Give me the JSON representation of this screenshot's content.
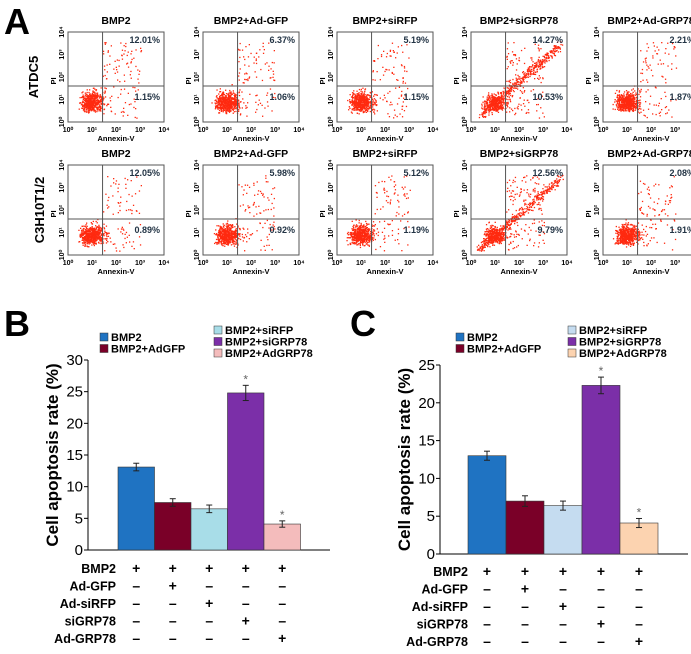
{
  "panel_a": {
    "label": "A",
    "row_labels": [
      "ATDC5",
      "C3H10T1/2"
    ],
    "x_axis_label": "Annexin-V",
    "y_axis_label": "PI",
    "tick_labels": [
      "10⁰",
      "10¹",
      "10²",
      "10³",
      "10⁴"
    ],
    "plots": [
      [
        {
          "title": "BMP2",
          "upper_right": "12.01%",
          "lower_right": "1.15%"
        },
        {
          "title": "BMP2+Ad-GFP",
          "upper_right": "6.37%",
          "lower_right": "1.06%"
        },
        {
          "title": "BMP2+siRFP",
          "upper_right": "5.19%",
          "lower_right": "1.15%"
        },
        {
          "title": "BMP2+siGRP78",
          "upper_right": "14.27%",
          "lower_right": "10.53%"
        },
        {
          "title": "BMP2+Ad-GRP78",
          "upper_right": "2.21%",
          "lower_right": "1.87%"
        }
      ],
      [
        {
          "title": "BMP2",
          "upper_right": "12.05%",
          "lower_right": "0.89%"
        },
        {
          "title": "BMP2+Ad-GFP",
          "upper_right": "5.98%",
          "lower_right": "0.92%"
        },
        {
          "title": "BMP2+siRFP",
          "upper_right": "5.12%",
          "lower_right": "1.19%"
        },
        {
          "title": "BMP2+siGRP78",
          "upper_right": "12.56%",
          "lower_right": "9.79%"
        },
        {
          "title": "BMP2+Ad-GRP78",
          "upper_right": "2.08%",
          "lower_right": "1.91%"
        }
      ]
    ],
    "dot_color": "#ff2a10"
  },
  "chart_data": [
    {
      "panel_label": "B",
      "type": "bar",
      "ylabel": "Cell apoptosis rate (%)",
      "ylim": [
        0,
        30
      ],
      "yticks": [
        0,
        5,
        10,
        15,
        20,
        25,
        30
      ],
      "legend": [
        "BMP2",
        "BMP2+AdGFP",
        "BMP2+siRFP",
        "BMP2+siGRP78",
        "BMP2+AdGRP78"
      ],
      "colors": [
        "#1f73c2",
        "#7a0028",
        "#a8dde8",
        "#7b2fa8",
        "#f4bcbc"
      ],
      "values": [
        13.1,
        7.5,
        6.5,
        24.8,
        4.1
      ],
      "errors": [
        0.6,
        0.6,
        0.6,
        1.2,
        0.5
      ],
      "significance": [
        "",
        "",
        "",
        "*",
        "*"
      ],
      "table_rows": [
        {
          "label": "BMP2",
          "marks": [
            "+",
            "+",
            "+",
            "+",
            "+"
          ]
        },
        {
          "label": "Ad-GFP",
          "marks": [
            "–",
            "+",
            "–",
            "–",
            "–"
          ]
        },
        {
          "label": "Ad-siRFP",
          "marks": [
            "–",
            "–",
            "+",
            "–",
            "–"
          ]
        },
        {
          "label": "siGRP78",
          "marks": [
            "–",
            "–",
            "–",
            "+",
            "–"
          ]
        },
        {
          "label": "Ad-GRP78",
          "marks": [
            "–",
            "–",
            "–",
            "–",
            "+"
          ]
        }
      ]
    },
    {
      "panel_label": "C",
      "type": "bar",
      "ylabel": "Cell apoptosis rate (%)",
      "ylim": [
        0,
        25
      ],
      "yticks": [
        0,
        5,
        10,
        15,
        20,
        25
      ],
      "legend": [
        "BMP2",
        "BMP2+AdGFP",
        "BMP2+siRFP",
        "BMP2+siGRP78",
        "BMP2+AdGRP78"
      ],
      "colors": [
        "#1f73c2",
        "#7a0028",
        "#c5dcf0",
        "#7b2fa8",
        "#fcd3b0"
      ],
      "values": [
        13.0,
        7.0,
        6.4,
        22.3,
        4.1
      ],
      "errors": [
        0.6,
        0.7,
        0.6,
        1.1,
        0.6
      ],
      "significance": [
        "",
        "",
        "",
        "*",
        "*"
      ],
      "table_rows": [
        {
          "label": "BMP2",
          "marks": [
            "+",
            "+",
            "+",
            "+",
            "+"
          ]
        },
        {
          "label": "Ad-GFP",
          "marks": [
            "–",
            "+",
            "–",
            "–",
            "–"
          ]
        },
        {
          "label": "Ad-siRFP",
          "marks": [
            "–",
            "–",
            "+",
            "–",
            "–"
          ]
        },
        {
          "label": "siGRP78",
          "marks": [
            "–",
            "–",
            "–",
            "+",
            "–"
          ]
        },
        {
          "label": "Ad-GRP78",
          "marks": [
            "–",
            "–",
            "–",
            "–",
            "+"
          ]
        }
      ]
    }
  ]
}
